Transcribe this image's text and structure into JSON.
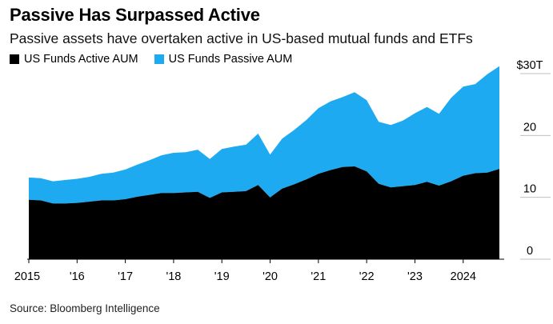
{
  "title": "Passive Has Surpassed Active",
  "subtitle": "Passive assets have overtaken active in US-based mutual funds and ETFs",
  "source": "Source: Bloomberg Intelligence",
  "colors": {
    "active": "#000000",
    "passive": "#1eaaf1",
    "grid": "#bfbfbf"
  },
  "chart_data": {
    "type": "area",
    "stacked": true,
    "legend_position": "top-left",
    "grid": true,
    "y_axis_side": "right",
    "ylim": [
      0,
      30
    ],
    "y_ticks": [
      0,
      10,
      20,
      30
    ],
    "y_tick_labels": [
      "0",
      "10",
      "20",
      "$30T"
    ],
    "x_ticks": [
      2015,
      2016,
      2017,
      2018,
      2019,
      2020,
      2021,
      2022,
      2023,
      2024
    ],
    "x_tick_labels": [
      "2015",
      "'16",
      "'17",
      "'18",
      "'19",
      "'20",
      "'21",
      "'22",
      "'23",
      "2024"
    ],
    "x": [
      2015.0,
      2015.25,
      2015.5,
      2015.75,
      2016.0,
      2016.25,
      2016.5,
      2016.75,
      2017.0,
      2017.25,
      2017.5,
      2017.75,
      2018.0,
      2018.25,
      2018.5,
      2018.75,
      2019.0,
      2019.25,
      2019.5,
      2019.75,
      2020.0,
      2020.25,
      2020.5,
      2020.75,
      2021.0,
      2021.25,
      2021.5,
      2021.75,
      2022.0,
      2022.25,
      2022.5,
      2022.75,
      2023.0,
      2023.25,
      2023.5,
      2023.75,
      2024.0,
      2024.25,
      2024.5,
      2024.75
    ],
    "series": [
      {
        "name": "US Funds Active AUM",
        "values": [
          9.6,
          9.5,
          9.0,
          9.0,
          9.1,
          9.3,
          9.5,
          9.5,
          9.7,
          10.1,
          10.4,
          10.7,
          10.7,
          10.8,
          10.9,
          9.9,
          10.8,
          10.9,
          11.0,
          12.0,
          10.0,
          11.4,
          12.1,
          12.9,
          13.8,
          14.4,
          14.9,
          15.0,
          14.2,
          12.2,
          11.6,
          11.8,
          12.0,
          12.5,
          11.9,
          12.6,
          13.5,
          13.9,
          14.0,
          14.6
        ]
      },
      {
        "name": "US Funds Passive AUM",
        "values": [
          3.6,
          3.6,
          3.6,
          3.8,
          3.9,
          4.0,
          4.3,
          4.5,
          4.8,
          5.2,
          5.6,
          6.1,
          6.5,
          6.5,
          6.8,
          6.3,
          7.0,
          7.3,
          7.5,
          8.3,
          6.9,
          8.1,
          8.8,
          9.6,
          10.6,
          11.1,
          11.3,
          12.0,
          11.5,
          10.0,
          10.1,
          10.6,
          11.6,
          12.1,
          11.6,
          13.5,
          14.4,
          14.4,
          15.9,
          16.6
        ]
      }
    ]
  }
}
